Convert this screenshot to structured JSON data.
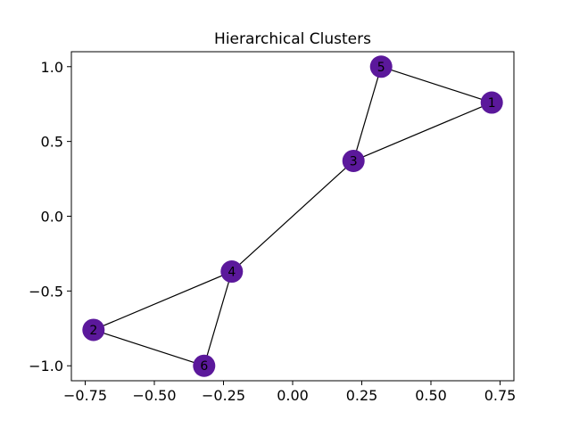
{
  "chart_data": {
    "type": "network",
    "title": "Hierarchical Clusters",
    "xlim": [
      -0.8,
      0.8
    ],
    "ylim": [
      -1.1,
      1.1
    ],
    "x_ticks": [
      -0.75,
      -0.5,
      -0.25,
      0.0,
      0.25,
      0.5,
      0.75
    ],
    "x_tick_labels": [
      "−0.75",
      "−0.50",
      "−0.25",
      "0.00",
      "0.25",
      "0.50",
      "0.75"
    ],
    "y_ticks": [
      1.0,
      0.5,
      0.0,
      -0.5,
      -1.0
    ],
    "y_tick_labels": [
      "1.0",
      "0.5",
      "0.0",
      "−0.5",
      "−1.0"
    ],
    "node_color": "#5b189b",
    "edge_color": "#000000",
    "nodes": [
      {
        "id": "1",
        "x": 0.72,
        "y": 0.76
      },
      {
        "id": "2",
        "x": -0.72,
        "y": -0.76
      },
      {
        "id": "3",
        "x": 0.22,
        "y": 0.37
      },
      {
        "id": "4",
        "x": -0.22,
        "y": -0.37
      },
      {
        "id": "5",
        "x": 0.32,
        "y": 1.0
      },
      {
        "id": "6",
        "x": -0.32,
        "y": -1.0
      }
    ],
    "edges": [
      [
        "5",
        "1"
      ],
      [
        "5",
        "3"
      ],
      [
        "1",
        "3"
      ],
      [
        "3",
        "4"
      ],
      [
        "4",
        "2"
      ],
      [
        "4",
        "6"
      ],
      [
        "2",
        "6"
      ]
    ]
  }
}
